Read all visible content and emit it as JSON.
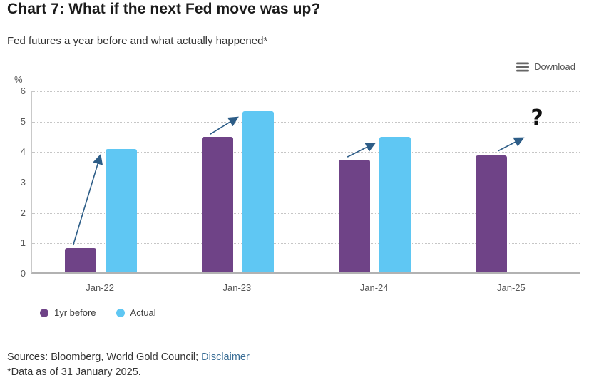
{
  "header": {
    "title": "Chart 7: What if the next Fed move was up?",
    "subtitle": "Fed futures a year before and what actually happened*",
    "download_label": "Download"
  },
  "chart_data": {
    "type": "bar",
    "categories": [
      "Jan-22",
      "Jan-23",
      "Jan-24",
      "Jan-25"
    ],
    "series": [
      {
        "name": "1yr before",
        "color": "#6F4387",
        "values": [
          0.8,
          4.45,
          3.7,
          3.85
        ]
      },
      {
        "name": "Actual",
        "color": "#5FC7F3",
        "values": [
          4.05,
          5.3,
          4.45,
          null
        ]
      }
    ],
    "ylabel": "%",
    "ylim": [
      0,
      6
    ],
    "yticks": [
      0,
      1,
      2,
      3,
      4,
      5,
      6
    ],
    "grid": "horizontal-dotted",
    "legend_position": "bottom-left",
    "annotations": {
      "question_mark": "?",
      "arrows_between_series": true,
      "arrow_color": "#2D5D87"
    }
  },
  "footer": {
    "sources_prefix": "Sources: Bloomberg, World Gold Council; ",
    "disclaimer_link": "Disclaimer",
    "data_note": "*Data as of 31 January 2025."
  }
}
